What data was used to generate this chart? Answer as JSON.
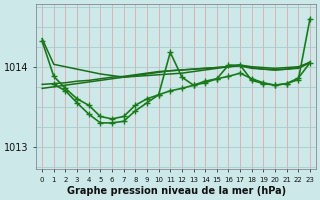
{
  "background_color": "#cce8e8",
  "grid_color_v": "#ddaaaa",
  "grid_color_h": "#aacccc",
  "xlabel": "Graphe pression niveau de la mer (hPa)",
  "yticks": [
    1013,
    1014
  ],
  "xlim": [
    -0.5,
    23.5
  ],
  "ylim": [
    1012.72,
    1014.78
  ],
  "series": [
    {
      "x": [
        0,
        1,
        2,
        3,
        4,
        5,
        6,
        7,
        8,
        9,
        10,
        11,
        12,
        13,
        14,
        15,
        16,
        17,
        18,
        19,
        20,
        21,
        22,
        23
      ],
      "y": [
        1014.35,
        1014.03,
        1014.0,
        1013.97,
        1013.94,
        1013.91,
        1013.89,
        1013.87,
        1013.88,
        1013.89,
        1013.9,
        1013.91,
        1013.92,
        1013.94,
        1013.96,
        1013.98,
        1014.0,
        1014.02,
        1014.0,
        1013.99,
        1013.98,
        1013.99,
        1014.0,
        1014.05
      ],
      "color": "#1a6e1a",
      "lw": 1.1,
      "marker": null
    },
    {
      "x": [
        0,
        1,
        2,
        3,
        4,
        5,
        6,
        7,
        8,
        9,
        10,
        11,
        12,
        13,
        14,
        15,
        16,
        17,
        18,
        19,
        20,
        21,
        22,
        23
      ],
      "y": [
        1013.78,
        1013.79,
        1013.8,
        1013.82,
        1013.83,
        1013.85,
        1013.87,
        1013.88,
        1013.9,
        1013.92,
        1013.94,
        1013.95,
        1013.96,
        1013.97,
        1013.98,
        1013.99,
        1014.0,
        1014.01,
        1013.98,
        1013.97,
        1013.96,
        1013.97,
        1013.98,
        1014.05
      ],
      "color": "#1a6e1a",
      "lw": 1.1,
      "marker": null
    },
    {
      "x": [
        0,
        1,
        2,
        3,
        4,
        5,
        6,
        7,
        8,
        9,
        10,
        11,
        12,
        13,
        14,
        15,
        16,
        17,
        18,
        19,
        20,
        21,
        22,
        23
      ],
      "y": [
        1013.73,
        1013.75,
        1013.77,
        1013.79,
        1013.81,
        1013.83,
        1013.85,
        1013.87,
        1013.89,
        1013.91,
        1013.93,
        1013.95,
        1013.96,
        1013.97,
        1013.98,
        1013.99,
        1014.0,
        1014.02,
        1013.99,
        1013.97,
        1013.96,
        1013.97,
        1013.99,
        1014.06
      ],
      "color": "#1a6e1a",
      "lw": 1.1,
      "marker": null
    },
    {
      "x": [
        0,
        1,
        2,
        3,
        4,
        5,
        6,
        7,
        8,
        9,
        10,
        11,
        12,
        13,
        14,
        15,
        16,
        17,
        18,
        19,
        20,
        21,
        22,
        23
      ],
      "y": [
        1014.32,
        1013.88,
        1013.73,
        1013.6,
        1013.52,
        1013.38,
        1013.35,
        1013.38,
        1013.52,
        1013.6,
        1013.65,
        1014.18,
        1013.87,
        1013.77,
        1013.82,
        1013.85,
        1014.02,
        1014.02,
        1013.83,
        1013.79,
        1013.77,
        1013.79,
        1013.84,
        1014.6
      ],
      "color": "#1a7a1a",
      "lw": 1.2,
      "marker": "+",
      "ms": 4
    },
    {
      "x": [
        1,
        2,
        3,
        4,
        5,
        6,
        7,
        8,
        9,
        10,
        11,
        12,
        13,
        14,
        15,
        16,
        17,
        18,
        19,
        20,
        21,
        22,
        23
      ],
      "y": [
        1013.78,
        1013.7,
        1013.55,
        1013.41,
        1013.3,
        1013.3,
        1013.32,
        1013.45,
        1013.55,
        1013.65,
        1013.7,
        1013.73,
        1013.77,
        1013.8,
        1013.85,
        1013.88,
        1013.92,
        1013.85,
        1013.8,
        1013.77,
        1013.79,
        1013.86,
        1014.05
      ],
      "color": "#1a7a1a",
      "lw": 1.2,
      "marker": "+",
      "ms": 4
    }
  ]
}
